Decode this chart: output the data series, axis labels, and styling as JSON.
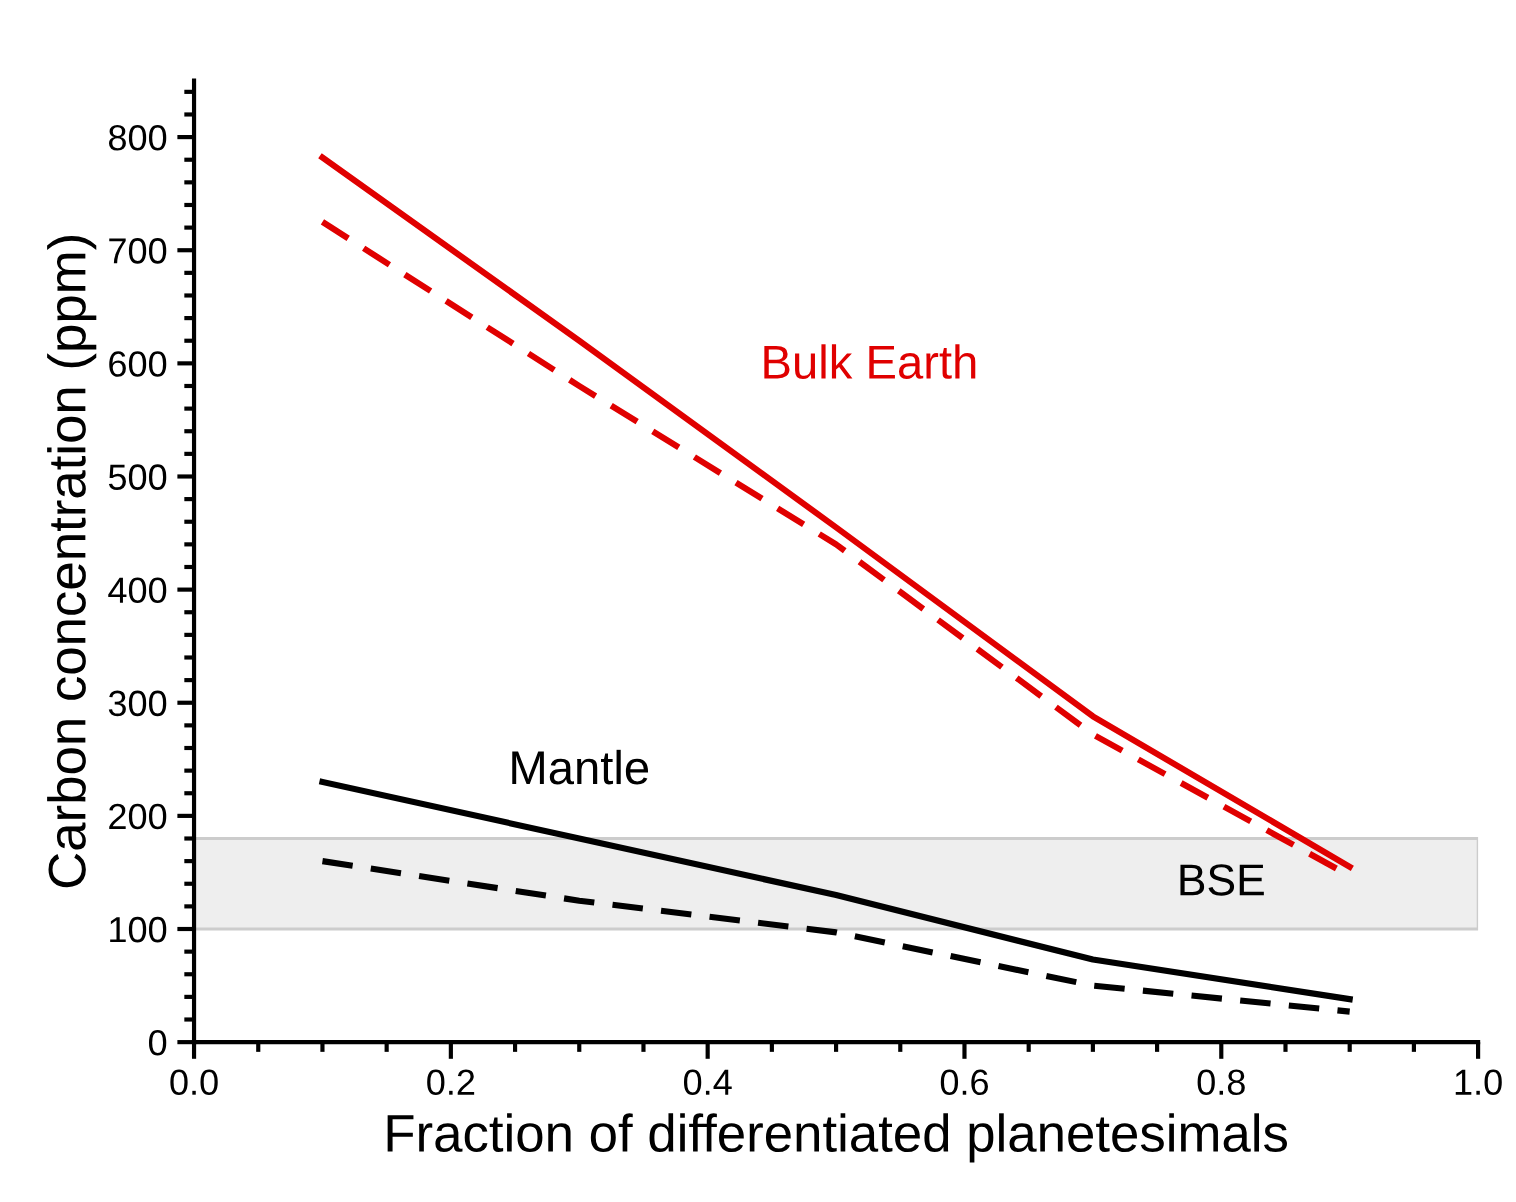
{
  "chart_data": {
    "type": "line",
    "xlabel": "Fraction of differentiated planetesimals",
    "ylabel": "Carbon concentration (ppm)",
    "xlim": [
      0.0,
      1.0
    ],
    "xticks": [
      {
        "value": 0.0,
        "label": "0.0"
      },
      0.2,
      0.4,
      0.6,
      0.8,
      {
        "value": 1.0,
        "label": "1.0"
      }
    ],
    "ylim": [
      0,
      850
    ],
    "yticks": [
      0,
      100,
      200,
      300,
      400,
      500,
      600,
      700,
      800
    ],
    "x": [
      0.1,
      0.3,
      0.5,
      0.7,
      0.9
    ],
    "series": [
      {
        "name": "Bulk Earth",
        "color": "#e00000",
        "line_style": "solid",
        "values": [
          782,
          620,
          455,
          288,
          155
        ]
      },
      {
        "color": "#e00000",
        "line_style": "dashed",
        "values": [
          725,
          580,
          440,
          272,
          147
        ]
      },
      {
        "name": "Mantle",
        "color": "#000000",
        "line_style": "solid",
        "values": [
          230,
          180,
          130,
          73,
          38
        ]
      },
      {
        "color": "#000000",
        "line_style": "dashed",
        "values": [
          160,
          125,
          97,
          50,
          27
        ]
      }
    ],
    "bands": [
      {
        "axis": "y",
        "from": 100,
        "to": 180,
        "label": "BSE",
        "color": "#eeeeee"
      }
    ],
    "grid": false,
    "legend": false,
    "marker": "none"
  }
}
